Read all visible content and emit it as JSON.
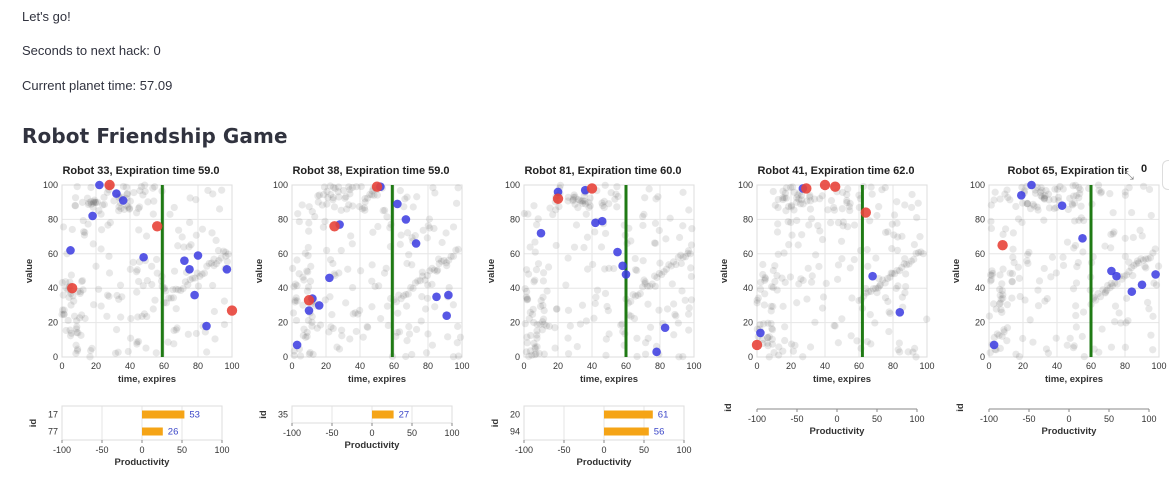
{
  "status": {
    "lets_go": "Let's go!",
    "seconds_to_hack": "Seconds to next hack: 0",
    "planet_time": "Current planet time: 57.09"
  },
  "game_title": "Robot Friendship Game",
  "overlay": {
    "count": "0",
    "expand_icon": "expand-icon"
  },
  "chart_data": [
    {
      "type": "scatter",
      "title": "Robot 33, Expiration time 59.0",
      "xlabel": "time, expires",
      "ylabel": "value",
      "xlim": [
        0,
        100
      ],
      "ylim": [
        0,
        100
      ],
      "expiration_line_x": 59,
      "blue": [
        [
          5,
          62
        ],
        [
          18,
          82
        ],
        [
          22,
          100
        ],
        [
          32,
          95
        ],
        [
          36,
          91
        ],
        [
          48,
          58
        ],
        [
          72,
          56
        ],
        [
          75,
          51
        ],
        [
          78,
          36
        ],
        [
          80,
          59
        ],
        [
          85,
          18
        ],
        [
          97,
          51
        ]
      ],
      "red": [
        [
          6,
          40
        ],
        [
          28,
          100
        ],
        [
          56,
          76
        ],
        [
          100,
          27
        ]
      ],
      "bar": {
        "ylabel": "id",
        "xlabel": "Productivity",
        "xlim": [
          -100,
          100
        ],
        "ids": [
          "17",
          "77"
        ],
        "values": [
          53,
          26
        ]
      }
    },
    {
      "type": "scatter",
      "title": "Robot 38, Expiration time 59.0",
      "xlabel": "time, expires",
      "ylabel": "value",
      "xlim": [
        0,
        100
      ],
      "ylim": [
        0,
        100
      ],
      "expiration_line_x": 59,
      "blue": [
        [
          3,
          7
        ],
        [
          10,
          27
        ],
        [
          12,
          34
        ],
        [
          16,
          30
        ],
        [
          22,
          46
        ],
        [
          28,
          77
        ],
        [
          52,
          99
        ],
        [
          62,
          89
        ],
        [
          67,
          80
        ],
        [
          73,
          66
        ],
        [
          85,
          35
        ],
        [
          91,
          24
        ],
        [
          92,
          36
        ]
      ],
      "red": [
        [
          10,
          33
        ],
        [
          25,
          76
        ],
        [
          50,
          99
        ]
      ],
      "bar": {
        "ylabel": "id",
        "xlabel": "Productivity",
        "xlim": [
          -100,
          100
        ],
        "ids": [
          "35"
        ],
        "values": [
          27
        ]
      }
    },
    {
      "type": "scatter",
      "title": "Robot 81, Expiration time 60.0",
      "xlabel": "time, expires",
      "ylabel": "value",
      "xlim": [
        0,
        100
      ],
      "ylim": [
        0,
        100
      ],
      "expiration_line_x": 60,
      "blue": [
        [
          10,
          72
        ],
        [
          20,
          96
        ],
        [
          36,
          97
        ],
        [
          42,
          78
        ],
        [
          46,
          79
        ],
        [
          55,
          61
        ],
        [
          58,
          53
        ],
        [
          60,
          48
        ],
        [
          78,
          3
        ],
        [
          83,
          17
        ]
      ],
      "red": [
        [
          20,
          92
        ],
        [
          40,
          98
        ]
      ],
      "bar": {
        "ylabel": "id",
        "xlabel": "Productivity",
        "xlim": [
          -100,
          100
        ],
        "ids": [
          "20",
          "94"
        ],
        "values": [
          61,
          56
        ]
      }
    },
    {
      "type": "scatter",
      "title": "Robot 41, Expiration time 62.0",
      "xlabel": "time, expires",
      "ylabel": "value",
      "xlim": [
        0,
        100
      ],
      "ylim": [
        0,
        100
      ],
      "expiration_line_x": 62,
      "blue": [
        [
          2,
          14
        ],
        [
          27,
          98
        ],
        [
          68,
          47
        ],
        [
          84,
          26
        ]
      ],
      "red": [
        [
          0,
          7
        ],
        [
          29,
          98
        ],
        [
          40,
          100
        ],
        [
          46,
          99
        ],
        [
          64,
          84
        ]
      ],
      "bar": {
        "ylabel": "id",
        "xlabel": "Productivity",
        "xlim": [
          -100,
          100
        ],
        "ids": [],
        "values": []
      }
    },
    {
      "type": "scatter",
      "title": "Robot 65, Expiration tir",
      "xlabel": "time, expires",
      "ylabel": "value",
      "xlim": [
        0,
        100
      ],
      "ylim": [
        0,
        100
      ],
      "expiration_line_x": 60,
      "blue": [
        [
          3,
          7
        ],
        [
          19,
          94
        ],
        [
          25,
          100
        ],
        [
          43,
          88
        ],
        [
          55,
          69
        ],
        [
          72,
          50
        ],
        [
          75,
          47
        ],
        [
          84,
          38
        ],
        [
          90,
          42
        ],
        [
          98,
          48
        ]
      ],
      "red": [
        [
          8,
          65
        ]
      ],
      "bar": {
        "ylabel": "id",
        "xlabel": "Productivity",
        "xlim": [
          -100,
          100
        ],
        "ids": [],
        "values": []
      }
    }
  ]
}
